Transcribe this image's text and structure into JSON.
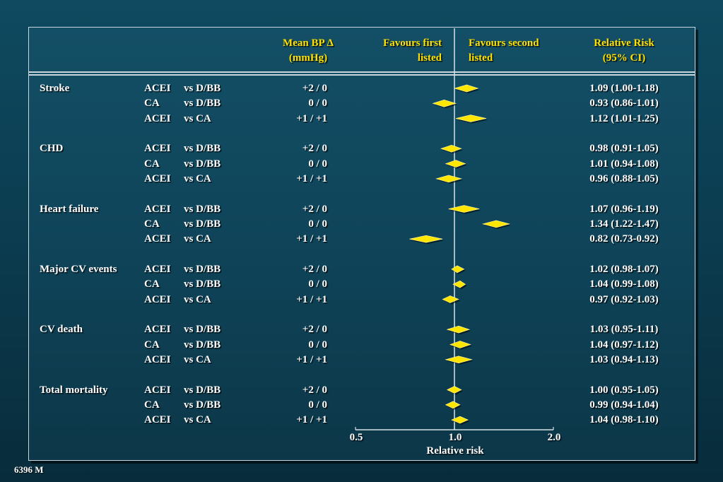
{
  "headers": {
    "mean_bp_line1": "Mean BP Δ",
    "mean_bp_line2": "(mmHg)",
    "favours_first_line1": "Favours first",
    "favours_first_line2": "listed",
    "favours_second_line1": "Favours second",
    "favours_second_line2": "listed",
    "relative_risk_line1": "Relative Risk",
    "relative_risk_line2": "(95% CI)"
  },
  "footnote": "6396 M",
  "chart_data": {
    "type": "forest",
    "xlabel": "Relative risk",
    "x_ticks": [
      "0.5",
      "1.0",
      "2.0"
    ],
    "x_scale": "log",
    "xlim": [
      0.5,
      2.0
    ],
    "reference_line": 1.0,
    "marker_color": "#ffe600",
    "groups": [
      {
        "outcome": "Stroke",
        "rows": [
          {
            "drug": "ACEI",
            "comparator": "vs D/BB",
            "bp": "+2 /   0",
            "rr": 1.09,
            "lo": 1.0,
            "hi": 1.18,
            "label": "1.09 (1.00-1.18)"
          },
          {
            "drug": "CA",
            "comparator": "vs D/BB",
            "bp": "0 /   0",
            "rr": 0.93,
            "lo": 0.86,
            "hi": 1.01,
            "label": "0.93 (0.86-1.01)"
          },
          {
            "drug": "ACEI",
            "comparator": "vs CA",
            "bp": "+1 / +1",
            "rr": 1.12,
            "lo": 1.01,
            "hi": 1.25,
            "label": "1.12 (1.01-1.25)"
          }
        ]
      },
      {
        "outcome": "CHD",
        "rows": [
          {
            "drug": "ACEI",
            "comparator": "vs D/BB",
            "bp": "+2 /   0",
            "rr": 0.98,
            "lo": 0.91,
            "hi": 1.05,
            "label": "0.98 (0.91-1.05)"
          },
          {
            "drug": "CA",
            "comparator": "vs D/BB",
            "bp": "0 /   0",
            "rr": 1.01,
            "lo": 0.94,
            "hi": 1.08,
            "label": "1.01 (0.94-1.08)"
          },
          {
            "drug": "ACEI",
            "comparator": "vs CA",
            "bp": "+1 / +1",
            "rr": 0.96,
            "lo": 0.88,
            "hi": 1.05,
            "label": "0.96 (0.88-1.05)"
          }
        ]
      },
      {
        "outcome": "Heart failure",
        "rows": [
          {
            "drug": "ACEI",
            "comparator": "vs D/BB",
            "bp": "+2 /   0",
            "rr": 1.07,
            "lo": 0.96,
            "hi": 1.19,
            "label": "1.07 (0.96-1.19)"
          },
          {
            "drug": "CA",
            "comparator": "vs D/BB",
            "bp": "0 /   0",
            "rr": 1.34,
            "lo": 1.22,
            "hi": 1.47,
            "label": "1.34 (1.22-1.47)"
          },
          {
            "drug": "ACEI",
            "comparator": "vs CA",
            "bp": "+1 / +1",
            "rr": 0.82,
            "lo": 0.73,
            "hi": 0.92,
            "label": "0.82 (0.73-0.92)"
          }
        ]
      },
      {
        "outcome": "Major CV events",
        "rows": [
          {
            "drug": "ACEI",
            "comparator": "vs D/BB",
            "bp": "+2 /   0",
            "rr": 1.02,
            "lo": 0.98,
            "hi": 1.07,
            "label": "1.02 (0.98-1.07)"
          },
          {
            "drug": "CA",
            "comparator": "vs D/BB",
            "bp": "0 /   0",
            "rr": 1.04,
            "lo": 0.99,
            "hi": 1.08,
            "label": "1.04 (0.99-1.08)"
          },
          {
            "drug": "ACEI",
            "comparator": "vs CA",
            "bp": "+1 / +1",
            "rr": 0.97,
            "lo": 0.92,
            "hi": 1.03,
            "label": "0.97 (0.92-1.03)"
          }
        ]
      },
      {
        "outcome": "CV death",
        "rows": [
          {
            "drug": "ACEI",
            "comparator": "vs D/BB",
            "bp": "+2 /   0",
            "rr": 1.03,
            "lo": 0.95,
            "hi": 1.11,
            "label": "1.03 (0.95-1.11)"
          },
          {
            "drug": "CA",
            "comparator": "vs D/BB",
            "bp": "0 /   0",
            "rr": 1.04,
            "lo": 0.97,
            "hi": 1.12,
            "label": "1.04 (0.97-1.12)"
          },
          {
            "drug": "ACEI",
            "comparator": "vs CA",
            "bp": "+1 / +1",
            "rr": 1.03,
            "lo": 0.94,
            "hi": 1.13,
            "label": "1.03 (0.94-1.13)"
          }
        ]
      },
      {
        "outcome": "Total mortality",
        "rows": [
          {
            "drug": "ACEI",
            "comparator": "vs D/BB",
            "bp": "+2 /   0",
            "rr": 1.0,
            "lo": 0.95,
            "hi": 1.05,
            "label": "1.00 (0.95-1.05)"
          },
          {
            "drug": "CA",
            "comparator": "vs D/BB",
            "bp": "0 /   0",
            "rr": 0.99,
            "lo": 0.94,
            "hi": 1.04,
            "label": "0.99 (0.94-1.04)"
          },
          {
            "drug": "ACEI",
            "comparator": "vs CA",
            "bp": "+1 / +1",
            "rr": 1.04,
            "lo": 0.98,
            "hi": 1.1,
            "label": "1.04 (0.98-1.10)"
          }
        ]
      }
    ]
  }
}
